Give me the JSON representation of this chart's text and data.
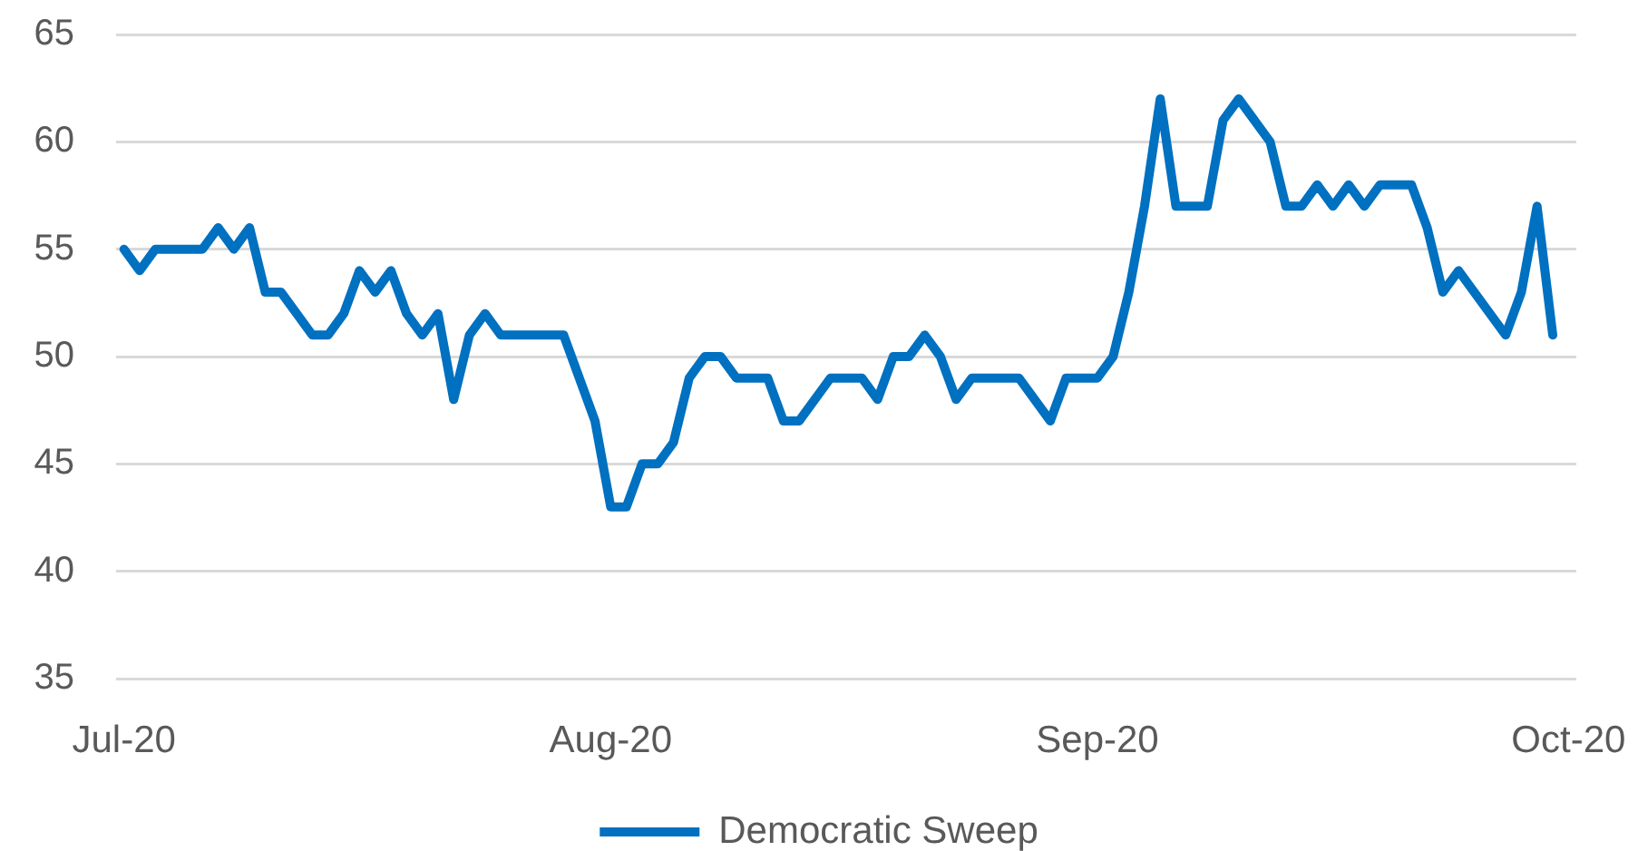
{
  "chart_data": {
    "type": "line",
    "x": [
      "2020-07-01",
      "2020-07-02",
      "2020-07-03",
      "2020-07-06",
      "2020-07-07",
      "2020-07-08",
      "2020-07-09",
      "2020-07-10",
      "2020-07-11",
      "2020-07-12",
      "2020-07-13",
      "2020-07-14",
      "2020-07-15",
      "2020-07-16",
      "2020-07-17",
      "2020-07-18",
      "2020-07-19",
      "2020-07-20",
      "2020-07-21",
      "2020-07-22",
      "2020-07-23",
      "2020-07-24",
      "2020-07-25",
      "2020-07-29",
      "2020-07-31",
      "2020-08-01",
      "2020-08-02",
      "2020-08-03",
      "2020-08-04",
      "2020-08-05",
      "2020-08-06",
      "2020-08-07",
      "2020-08-08",
      "2020-08-09",
      "2020-08-11",
      "2020-08-12",
      "2020-08-13",
      "2020-08-15",
      "2020-08-17",
      "2020-08-18",
      "2020-08-19",
      "2020-08-20",
      "2020-08-21",
      "2020-08-22",
      "2020-08-23",
      "2020-08-24",
      "2020-08-27",
      "2020-08-29",
      "2020-08-30",
      "2020-09-01",
      "2020-09-02",
      "2020-09-03",
      "2020-09-04",
      "2020-09-05",
      "2020-09-06",
      "2020-09-08",
      "2020-09-09",
      "2020-09-10",
      "2020-09-12",
      "2020-09-13",
      "2020-09-14",
      "2020-09-15",
      "2020-09-16",
      "2020-09-17",
      "2020-09-18",
      "2020-09-19",
      "2020-09-21",
      "2020-09-22",
      "2020-09-23",
      "2020-09-24",
      "2020-09-27",
      "2020-09-28",
      "2020-09-29",
      "2020-09-30"
    ],
    "series": [
      {
        "name": "Democratic Sweep",
        "color": "#0070c0",
        "values": [
          55,
          54,
          55,
          55,
          56,
          55,
          56,
          53,
          53,
          52,
          51,
          51,
          52,
          54,
          53,
          54,
          52,
          51,
          52,
          48,
          51,
          52,
          51,
          51,
          47,
          43,
          43,
          45,
          45,
          46,
          49,
          50,
          50,
          49,
          49,
          47,
          47,
          49,
          49,
          48,
          50,
          50,
          51,
          50,
          48,
          49,
          49,
          47,
          49,
          49,
          50,
          53,
          57,
          62,
          57,
          57,
          61,
          62,
          60,
          57,
          57,
          58,
          57,
          58,
          57,
          58,
          58,
          56,
          53,
          54,
          51,
          53,
          57,
          51
        ]
      }
    ],
    "xlim": [
      "2020-06-30T12:00",
      "2020-10-01T12:00"
    ],
    "xticks": [
      {
        "value": "2020-07-01",
        "label": "Jul-20"
      },
      {
        "value": "2020-08-01",
        "label": "Aug-20"
      },
      {
        "value": "2020-09-01",
        "label": "Sep-20"
      },
      {
        "value": "2020-10-01",
        "label": "Oct-20"
      }
    ],
    "ylim": [
      35,
      65
    ],
    "yticks": [
      35,
      40,
      45,
      50,
      55,
      60,
      65
    ],
    "grid": "y",
    "legend": "bottom"
  }
}
